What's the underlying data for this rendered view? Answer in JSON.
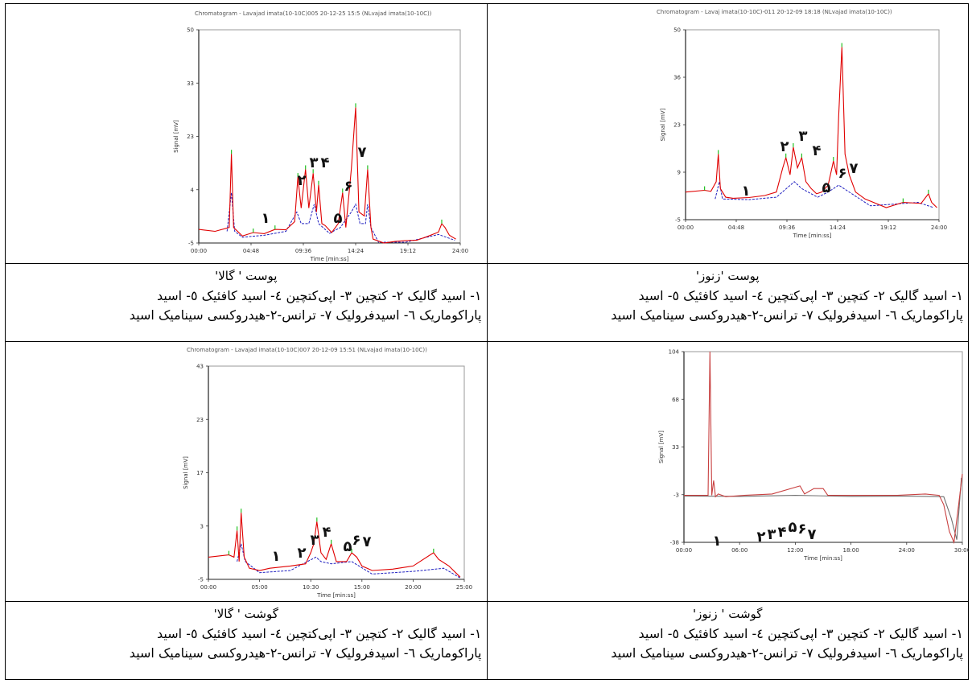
{
  "chart_data": [
    {
      "id": "c1",
      "type": "line",
      "title": "Chromatogram - Lavajad imata(10-10C)005 20-12-25 15:5 (NLvajad imata(10-10C))",
      "xlabel": "Time [min:ss]",
      "ylabel": "Signal [mV]",
      "x_ticks": [
        "00:00",
        "04:48",
        "09:36",
        "14:24",
        "19:12",
        "24:00"
      ],
      "y_ticks": [
        "50",
        "33",
        "23",
        "4",
        "-5"
      ],
      "ylim": [
        -5,
        50
      ],
      "series": [
        {
          "color": "#e00000",
          "points": [
            [
              0,
              -1.5
            ],
            [
              1.5,
              -2
            ],
            [
              2.8,
              -1
            ],
            [
              3,
              18
            ],
            [
              3.2,
              -1
            ],
            [
              4,
              -3.2
            ],
            [
              5,
              -2.3
            ],
            [
              6,
              -2.6
            ],
            [
              7,
              -1.5
            ],
            [
              8,
              -1.6
            ],
            [
              8.8,
              0.5
            ],
            [
              9.1,
              12
            ],
            [
              9.4,
              4
            ],
            [
              9.8,
              14
            ],
            [
              10.1,
              4
            ],
            [
              10.5,
              13
            ],
            [
              10.8,
              3
            ],
            [
              11,
              10
            ],
            [
              11.3,
              0
            ],
            [
              11.6,
              -0.5
            ],
            [
              12.2,
              -2.3
            ],
            [
              12.8,
              0
            ],
            [
              13.2,
              8
            ],
            [
              13.5,
              -1
            ],
            [
              14,
              14
            ],
            [
              14.4,
              30
            ],
            [
              14.7,
              3
            ],
            [
              15.2,
              2
            ],
            [
              15.5,
              14
            ],
            [
              15.8,
              -1
            ],
            [
              16,
              -4
            ],
            [
              17,
              -5
            ],
            [
              18,
              -4.6
            ],
            [
              19,
              -4.4
            ],
            [
              20,
              -4.3
            ],
            [
              21,
              -3.3
            ],
            [
              22,
              -2.2
            ],
            [
              22.3,
              0
            ],
            [
              22.6,
              -1
            ],
            [
              23,
              -3
            ],
            [
              23.6,
              -4
            ]
          ]
        },
        {
          "color": "#2020c0",
          "points": [
            [
              2.6,
              -2
            ],
            [
              3,
              8
            ],
            [
              3.3,
              -2
            ],
            [
              4,
              -3.5
            ],
            [
              6,
              -3
            ],
            [
              8,
              -2
            ],
            [
              9,
              3
            ],
            [
              9.4,
              0
            ],
            [
              10.1,
              0
            ],
            [
              10.6,
              5
            ],
            [
              11,
              0
            ],
            [
              12,
              -2.5
            ],
            [
              13,
              -1
            ],
            [
              14,
              3
            ],
            [
              14.4,
              5
            ],
            [
              14.8,
              0
            ],
            [
              15.3,
              0
            ],
            [
              15.5,
              5
            ],
            [
              15.8,
              -1
            ],
            [
              16.5,
              -4.8
            ],
            [
              19,
              -4.8
            ],
            [
              22,
              -2.8
            ],
            [
              23.5,
              -4.3
            ]
          ]
        }
      ],
      "annotations": [
        "۱",
        "۲",
        "۳",
        "۴",
        "۵",
        "۶",
        "۷"
      ]
    },
    {
      "id": "c2",
      "type": "line",
      "title": "Chromatogram - Lavaj imata(10-10C)-011 20-12-09 18:18 (NLvajad imata(10-10C))",
      "xlabel": "Time [min:ss]",
      "ylabel": "Signal [mV]",
      "x_ticks": [
        "00:00",
        "04:48",
        "09:36",
        "14:24",
        "19:12",
        "24:00"
      ],
      "y_ticks": [
        "50",
        "36",
        "23",
        "9",
        "-5"
      ],
      "ylim": [
        -5,
        50
      ],
      "series": [
        {
          "color": "#e00000",
          "points": [
            [
              0,
              3
            ],
            [
              1.8,
              3.5
            ],
            [
              2.4,
              3.2
            ],
            [
              2.9,
              6
            ],
            [
              3.1,
              14
            ],
            [
              3.3,
              4
            ],
            [
              3.8,
              1.5
            ],
            [
              4.5,
              1.2
            ],
            [
              6,
              1.4
            ],
            [
              7.5,
              2
            ],
            [
              8.6,
              3
            ],
            [
              9.2,
              10
            ],
            [
              9.5,
              13
            ],
            [
              9.9,
              8
            ],
            [
              10.2,
              16
            ],
            [
              10.6,
              10
            ],
            [
              11,
              13
            ],
            [
              11.4,
              6
            ],
            [
              11.9,
              4
            ],
            [
              12.4,
              2.5
            ],
            [
              12.9,
              3
            ],
            [
              13.5,
              5
            ],
            [
              14,
              12
            ],
            [
              14.3,
              8
            ],
            [
              14.5,
              25
            ],
            [
              14.8,
              45
            ],
            [
              15.1,
              14
            ],
            [
              15.5,
              8
            ],
            [
              16.1,
              3
            ],
            [
              17,
              1
            ],
            [
              19,
              -1.5
            ],
            [
              20.6,
              0
            ],
            [
              22.3,
              -0.3
            ],
            [
              23,
              2.5
            ],
            [
              23.3,
              0
            ],
            [
              23.8,
              -1.5
            ]
          ]
        },
        {
          "color": "#2020c0",
          "points": [
            [
              2.8,
              1
            ],
            [
              3.2,
              6
            ],
            [
              3.5,
              1
            ],
            [
              6,
              0.8
            ],
            [
              8.6,
              1.5
            ],
            [
              10.3,
              6
            ],
            [
              11,
              4
            ],
            [
              12.5,
              1.5
            ],
            [
              13.5,
              3
            ],
            [
              14.5,
              5
            ],
            [
              15,
              4
            ],
            [
              16,
              2
            ],
            [
              17.5,
              -1
            ],
            [
              22,
              0
            ],
            [
              23.5,
              -1.5
            ]
          ]
        }
      ],
      "annotations": [
        "۱",
        "۲",
        "۳",
        "۴",
        "۵",
        "۶",
        "۷"
      ]
    },
    {
      "id": "c3",
      "type": "line",
      "title": "Chromatogram - Lavajad imata(10-10C)007 20-12-09 15:51 (NLvajad imata(10-10C))",
      "xlabel": "Time [min:ss]",
      "ylabel": "Signal [mV]",
      "x_ticks": [
        "00:00",
        "05:00",
        "10:30",
        "15:00",
        "20:00",
        "25:00"
      ],
      "y_ticks": [
        "43",
        "23",
        "17",
        "3",
        "-5"
      ],
      "ylim": [
        -5,
        43
      ],
      "series": [
        {
          "color": "#e00000",
          "points": [
            [
              0,
              0
            ],
            [
              2,
              0.5
            ],
            [
              2.5,
              0
            ],
            [
              2.8,
              6
            ],
            [
              3,
              -1
            ],
            [
              3.2,
              10
            ],
            [
              3.5,
              0
            ],
            [
              4,
              -2.5
            ],
            [
              5,
              -3
            ],
            [
              6,
              -2.5
            ],
            [
              8,
              -2
            ],
            [
              9.5,
              -1.5
            ],
            [
              10,
              1
            ],
            [
              10.3,
              3
            ],
            [
              10.6,
              8
            ],
            [
              11,
              1
            ],
            [
              11.5,
              -0.5
            ],
            [
              12,
              3
            ],
            [
              12.5,
              -1
            ],
            [
              13.5,
              -1
            ],
            [
              14,
              1
            ],
            [
              14.5,
              0
            ],
            [
              15,
              -2
            ],
            [
              16,
              -3
            ],
            [
              18,
              -2.7
            ],
            [
              20,
              -2
            ],
            [
              22,
              1
            ],
            [
              22.5,
              -0.5
            ],
            [
              23.5,
              -2
            ],
            [
              24.6,
              -4.5
            ]
          ]
        },
        {
          "color": "#2020c0",
          "points": [
            [
              2.8,
              -1
            ],
            [
              3.2,
              3
            ],
            [
              3.6,
              -1
            ],
            [
              5,
              -3.5
            ],
            [
              8,
              -3
            ],
            [
              10.5,
              0
            ],
            [
              11,
              -1
            ],
            [
              12,
              -1.5
            ],
            [
              14,
              -1
            ],
            [
              16,
              -3.8
            ],
            [
              20,
              -3.2
            ],
            [
              23,
              -2.5
            ],
            [
              24.6,
              -4.7
            ]
          ]
        }
      ],
      "annotations": [
        "۱",
        "۲",
        "۳",
        "۴",
        "۵",
        "۶",
        "۷"
      ]
    },
    {
      "id": "c4",
      "type": "line",
      "title": "",
      "xlabel": "Time [min:ss]",
      "ylabel": "Signal [mV]",
      "x_ticks": [
        "00:00",
        "06:00",
        "12:00",
        "18:00",
        "24:00",
        "30:00"
      ],
      "y_ticks": [
        "104",
        "68",
        "33",
        "-3",
        "-38"
      ],
      "ylim": [
        -38,
        104
      ],
      "series": [
        {
          "color": "#c84040",
          "points": [
            [
              0,
              -3
            ],
            [
              2.6,
              -3
            ],
            [
              2.8,
              104
            ],
            [
              3,
              -3
            ],
            [
              3.2,
              8
            ],
            [
              3.4,
              -4
            ],
            [
              3.7,
              -2
            ],
            [
              4.5,
              -4
            ],
            [
              6.5,
              -3
            ],
            [
              9.5,
              -2
            ],
            [
              12.5,
              4
            ],
            [
              13,
              -2
            ],
            [
              14,
              2
            ],
            [
              15,
              2
            ],
            [
              15.5,
              -3
            ],
            [
              18,
              -3
            ],
            [
              20,
              -3
            ],
            [
              23,
              -3
            ],
            [
              26,
              -2
            ],
            [
              27.5,
              -3
            ],
            [
              28,
              -10
            ],
            [
              28.6,
              -30
            ],
            [
              29.1,
              -38
            ],
            [
              29.6,
              -10
            ],
            [
              30,
              13
            ]
          ]
        },
        {
          "color": "#707070",
          "points": [
            [
              0,
              -3.5
            ],
            [
              6,
              -3.8
            ],
            [
              12,
              -3
            ],
            [
              18,
              -3.8
            ],
            [
              24,
              -3.6
            ],
            [
              28,
              -4
            ],
            [
              28.8,
              -20
            ],
            [
              29.4,
              -36
            ],
            [
              29.9,
              10
            ]
          ]
        }
      ],
      "annotations": [
        "۱",
        "۲",
        "۳",
        "۴",
        "۵",
        "۶",
        "۷"
      ]
    }
  ],
  "cells": [
    {
      "title": "پوست ' گالا'",
      "line1": "۱- اسید گالیک   ۲- کتچین   ۳- اپی‌کتچین   ٤- اسید کافئیک ٥- اسید",
      "line2": "پاراکوماریک ٦- اسیدفرولیک  ۷- ترانس-۲-هیدروکسی سینامیک اسید"
    },
    {
      "title": "پوست 'زنوز'",
      "line1": "۱- اسید گالیک   ۲- کتچین   ۳- اپی‌کتچین   ٤- اسید کافئیک ٥- اسید",
      "line2": "پاراکوماریک ٦- اسیدفرولیک  ۷- ترانس-۲-هیدروکسی سینامیک اسید"
    },
    {
      "title": "گوشت ' گالا'",
      "line1": "۱- اسید گالیک   ۲- کتچین   ۳- اپی‌کتچین   ٤- اسید کافئیک ٥- اسید",
      "line2": "پاراکوماریک ٦- اسیدفرولیک  ۷- ترانس-۲-هیدروکسی سینامیک اسید"
    },
    {
      "title": "گوشت ' زنوز'",
      "line1": "۱- اسید گالیک   ۲- کتچین   ۳- اپی‌کتچین   ٤- اسید کافئیک ٥- اسید",
      "line2": "پاراکوماریک ٦- اسیدفرولیک  ۷- ترانس-۲-هیدروکسی سینامیک اسید"
    }
  ]
}
